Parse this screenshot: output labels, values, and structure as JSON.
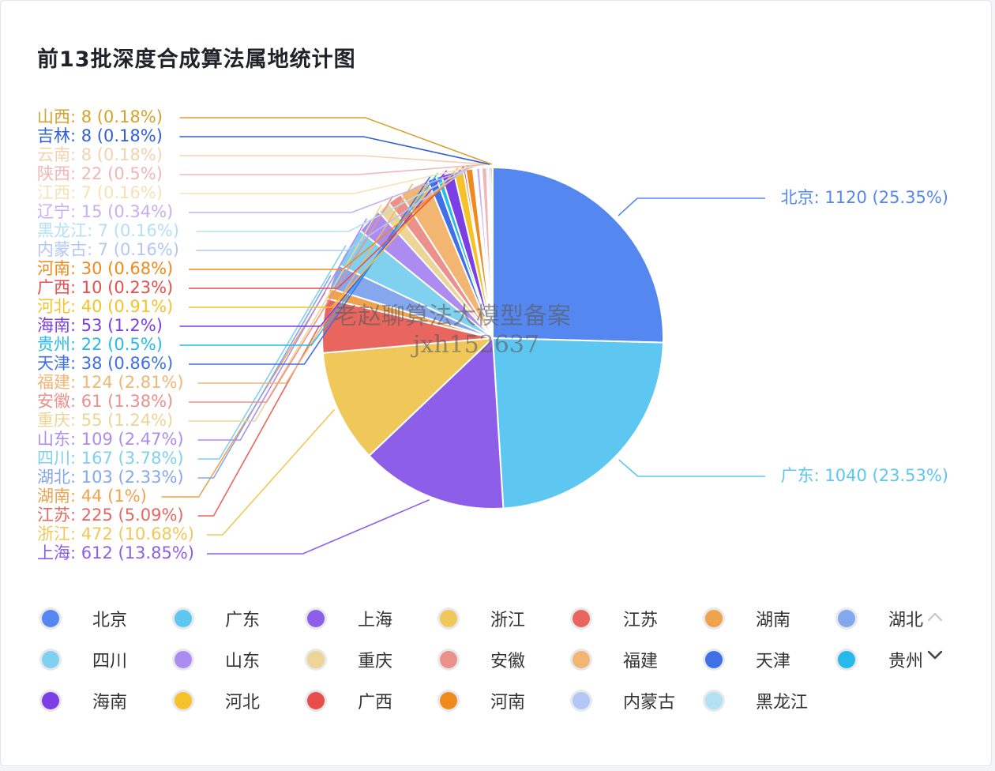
{
  "title": "前13批深度合成算法属地统计图",
  "watermark": {
    "line1": "老赵聊算法大模型备案",
    "line2": "jxh152637"
  },
  "chart_data": {
    "type": "pie",
    "title": "前13批深度合成算法属地统计图",
    "slices": [
      {
        "name": "北京",
        "value": 1120,
        "percent": "25.35%",
        "color": "#5587f0"
      },
      {
        "name": "广东",
        "value": 1040,
        "percent": "23.53%",
        "color": "#5dc6f1"
      },
      {
        "name": "上海",
        "value": 612,
        "percent": "13.85%",
        "color": "#8d5fe8"
      },
      {
        "name": "浙江",
        "value": 472,
        "percent": "10.68%",
        "color": "#efc859"
      },
      {
        "name": "江苏",
        "value": 225,
        "percent": "5.09%",
        "color": "#e9665f"
      },
      {
        "name": "湖南",
        "value": 44,
        "percent": "1%",
        "color": "#f0a24d"
      },
      {
        "name": "湖北",
        "value": 103,
        "percent": "2.33%",
        "color": "#85a7ee"
      },
      {
        "name": "四川",
        "value": 167,
        "percent": "3.78%",
        "color": "#80d0f0"
      },
      {
        "name": "山东",
        "value": 109,
        "percent": "2.47%",
        "color": "#ac8cf0"
      },
      {
        "name": "重庆",
        "value": 55,
        "percent": "1.24%",
        "color": "#ecd596"
      },
      {
        "name": "安徽",
        "value": 61,
        "percent": "1.38%",
        "color": "#ec908b"
      },
      {
        "name": "福建",
        "value": 124,
        "percent": "2.81%",
        "color": "#f2b572"
      },
      {
        "name": "天津",
        "value": 38,
        "percent": "0.86%",
        "color": "#3f70e8"
      },
      {
        "name": "贵州",
        "value": 22,
        "percent": "0.5%",
        "color": "#26baea"
      },
      {
        "name": "海南",
        "value": 53,
        "percent": "1.2%",
        "color": "#7c3fe4"
      },
      {
        "name": "河北",
        "value": 40,
        "percent": "0.91%",
        "color": "#f5c22a"
      },
      {
        "name": "广西",
        "value": 10,
        "percent": "0.23%",
        "color": "#e84e4a"
      },
      {
        "name": "河南",
        "value": 30,
        "percent": "0.68%",
        "color": "#f08a1c"
      },
      {
        "name": "内蒙古",
        "value": 7,
        "percent": "0.16%",
        "color": "#b3c6f4"
      },
      {
        "name": "黑龙江",
        "value": 7,
        "percent": "0.16%",
        "color": "#b4e0f4"
      },
      {
        "name": "辽宁",
        "value": 15,
        "percent": "0.34%",
        "color": "#c7b0f2"
      },
      {
        "name": "江西",
        "value": 7,
        "percent": "0.16%",
        "color": "#f4e3b6"
      },
      {
        "name": "陕西",
        "value": 22,
        "percent": "0.5%",
        "color": "#f1b7b5"
      },
      {
        "name": "云南",
        "value": 8,
        "percent": "0.18%",
        "color": "#f4d2b0"
      },
      {
        "name": "吉林",
        "value": 8,
        "percent": "0.18%",
        "color": "#2f5fd6"
      },
      {
        "name": "山西",
        "value": 8,
        "percent": "0.18%",
        "color": "#d6a22c"
      }
    ],
    "legend_position": "bottom"
  },
  "legend": {
    "rows": [
      [
        "北京",
        "广东",
        "上海",
        "浙江",
        "江苏",
        "湖南",
        "湖北"
      ],
      [
        "四川",
        "山东",
        "重庆",
        "安徽",
        "福建",
        "天津",
        "贵州"
      ],
      [
        "海南",
        "河北",
        "广西",
        "河南",
        "内蒙古",
        "黑龙江"
      ]
    ],
    "pager_up_icon": "chevron-up-icon",
    "pager_down_icon": "chevron-down-icon"
  }
}
